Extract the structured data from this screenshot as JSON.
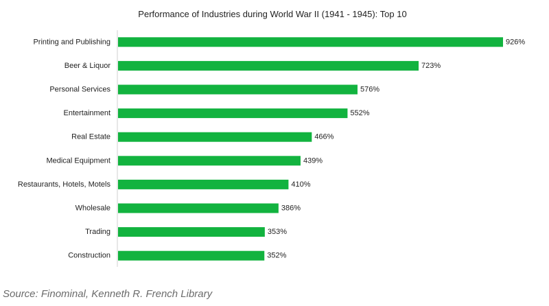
{
  "chart_data": {
    "type": "bar",
    "orientation": "horizontal",
    "title": "Performance of Industries during World War II (1941 - 1945): Top 10",
    "categories": [
      "Printing and Publishing",
      "Beer & Liquor",
      "Personal Services",
      "Entertainment",
      "Real Estate",
      "Medical Equipment",
      "Restaurants, Hotels, Motels",
      "Wholesale",
      "Trading",
      "Construction"
    ],
    "values": [
      926,
      723,
      576,
      552,
      466,
      439,
      410,
      386,
      353,
      352
    ],
    "value_labels": [
      "926%",
      "723%",
      "576%",
      "552%",
      "466%",
      "439%",
      "410%",
      "386%",
      "353%",
      "352%"
    ],
    "xlim": [
      0,
      926
    ],
    "grid": false,
    "legend": "none",
    "bar_color": "#12b33f"
  },
  "caption": "Source: Finominal, Kenneth R. French Library"
}
